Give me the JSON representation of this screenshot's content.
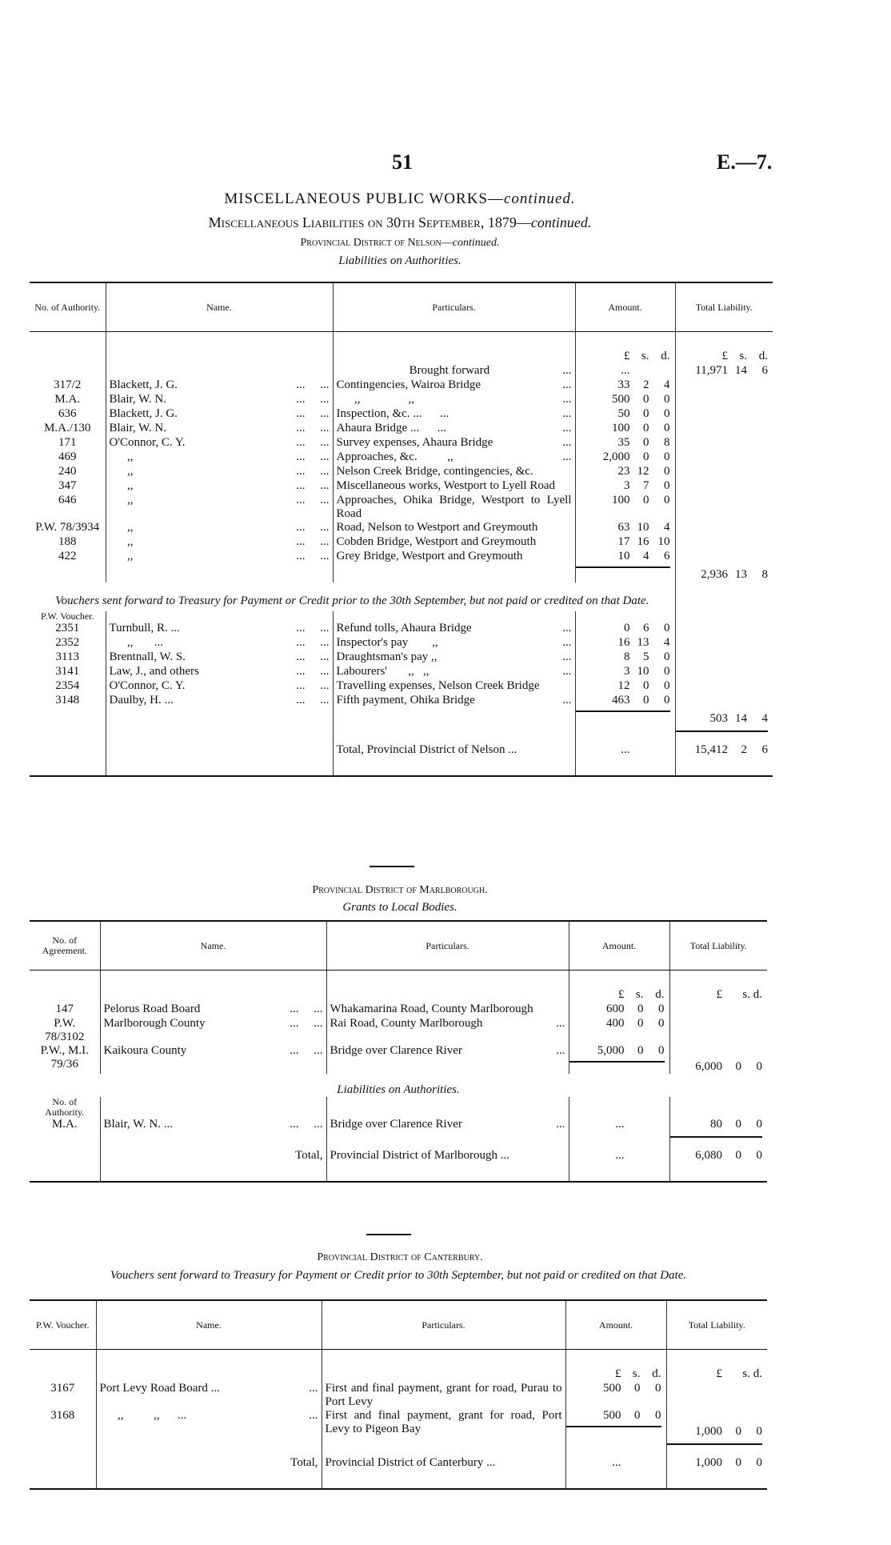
{
  "page_number": "51",
  "doc_ref": "E.—7.",
  "title": "MISCELLANEOUS PUBLIC WORKS—",
  "title_cont": "continued.",
  "subtitle": "Miscellaneous Liabilities on 30th September, 1879—",
  "subtitle_cont": "continued.",
  "nelson_heading": "Provincial District of Nelson—",
  "nelson_heading_cont": "continued.",
  "nelson_caption": "Liabilities on Authorities.",
  "nelson": {
    "headers": [
      "No. of Authority.",
      "Name.",
      "Particulars.",
      "Amount.",
      "Total Liability."
    ],
    "rows": [
      {
        "type": "row",
        "amt": [
          "£",
          "s.",
          "d."
        ],
        "tot": [
          "£",
          "s.",
          "d."
        ]
      },
      {
        "type": "row",
        "part": "Brought forward",
        "pdots": "...",
        "amt": [
          "...",
          "",
          ""
        ],
        "tot": [
          "11,971",
          "14",
          "6"
        ],
        "center": true
      },
      {
        "type": "row",
        "no": "317/2",
        "name": "Blackett, J. G.",
        "dots": "...     ...",
        "part": "Contingencies, Wairoa Bridge",
        "pdots": "...",
        "amt": [
          "33",
          "2",
          "4"
        ]
      },
      {
        "type": "row",
        "no": "M.A.",
        "name": "Blair, W. N.",
        "dots": "...     ...",
        "part": "      ,,                ,,",
        "pdots": "...",
        "amt": [
          "500",
          "0",
          "0"
        ]
      },
      {
        "type": "row",
        "no": "636",
        "name": "Blackett, J. G.",
        "dots": "...     ...",
        "part": "Inspection, &c. ...      ...",
        "pdots": "...",
        "amt": [
          "50",
          "0",
          "0"
        ]
      },
      {
        "type": "row",
        "no": "M.A./130",
        "name": "Blair, W. N.",
        "dots": "...     ...",
        "part": "Ahaura Bridge ...      ...",
        "pdots": "...",
        "amt": [
          "100",
          "0",
          "0"
        ]
      },
      {
        "type": "row",
        "no": "171",
        "name": "O'Connor, C. Y.",
        "dots": "...     ...",
        "part": "Survey expenses, Ahaura Bridge",
        "pdots": "...",
        "amt": [
          "35",
          "0",
          "8"
        ]
      },
      {
        "type": "row",
        "no": "469",
        "name": "      ,,",
        "dots": "...     ...",
        "part": "Approaches, &c.          ,,",
        "pdots": "...",
        "amt": [
          "2,000",
          "0",
          "0"
        ]
      },
      {
        "type": "row",
        "no": "240",
        "name": "      ,,",
        "dots": "...     ...",
        "part": "Nelson Creek Bridge, contingencies, &c.",
        "amt": [
          "23",
          "12",
          "0"
        ]
      },
      {
        "type": "row",
        "no": "347",
        "name": "      ,,",
        "dots": "...     ...",
        "part": "Miscellaneous works, Westport to Lyell Road",
        "amt": [
          "3",
          "7",
          "0"
        ]
      },
      {
        "type": "row",
        "no": "646",
        "name": "      ,,",
        "dots": "...     ...",
        "part": "Approaches, Ohika Bridge, Westport to Lyell Road",
        "amt": [
          "100",
          "0",
          "0"
        ]
      },
      {
        "type": "row",
        "no": "P.W. 78/3934",
        "name": "      ,,",
        "dots": "...     ...",
        "part": "Road, Nelson to Westport and Greymouth",
        "amt": [
          "63",
          "10",
          "4"
        ]
      },
      {
        "type": "row",
        "no": "188",
        "name": "      ,,",
        "dots": "...     ...",
        "part": "Cobden Bridge, Westport and Greymouth",
        "amt": [
          "17",
          "16",
          "10"
        ]
      },
      {
        "type": "row",
        "no": "422",
        "name": "      ,,",
        "dots": "...     ...",
        "part": "Grey Bridge, Westport and Greymouth",
        "amt": [
          "10",
          "4",
          "6"
        ],
        "rule": true
      },
      {
        "type": "row",
        "tot": [
          "2,936",
          "13",
          "8"
        ]
      },
      {
        "type": "note",
        "text": "Vouchers sent forward to Treasury for Payment or Credit prior to the 30th September, but not paid or credited on that Date."
      },
      {
        "type": "sub",
        "text": "P.W. Voucher."
      },
      {
        "type": "row",
        "no": "2351",
        "name": "Turnbull, R. ...",
        "dots": "...     ...",
        "part": "Refund tolls, Ahaura Bridge",
        "pdots": "...",
        "amt": [
          "0",
          "6",
          "0"
        ]
      },
      {
        "type": "row",
        "no": "2352",
        "name": "      ,,       ...",
        "dots": "...     ...",
        "part": "Inspector's pay        ,,",
        "pdots": "...",
        "amt": [
          "16",
          "13",
          "4"
        ]
      },
      {
        "type": "row",
        "no": "3113",
        "name": "Brentnall, W. S.",
        "dots": "...     ...",
        "part": "Draughtsman's pay ,,",
        "pdots": "...",
        "amt": [
          "8",
          "5",
          "0"
        ]
      },
      {
        "type": "row",
        "no": "3141",
        "name": "Law, J., and others",
        "dots": "...     ...",
        "part": "Labourers'       ,,   ,,",
        "pdots": "...",
        "amt": [
          "3",
          "10",
          "0"
        ]
      },
      {
        "type": "row",
        "no": "2354",
        "name": "O'Connor, C. Y.",
        "dots": "...     ...",
        "part": "Travelling expenses, Nelson Creek Bridge",
        "amt": [
          "12",
          "0",
          "0"
        ]
      },
      {
        "type": "row",
        "no": "3148",
        "name": "Daulby, H. ...",
        "dots": "...     ...",
        "part": "Fifth payment, Ohika Bridge",
        "pdots": "...",
        "amt": [
          "463",
          "0",
          "0"
        ],
        "rule": true
      },
      {
        "type": "row",
        "tot": [
          "503",
          "14",
          "4"
        ],
        "totrule": true
      },
      {
        "type": "row",
        "part": "Total, Provincial District of Nelson ...",
        "amt": [
          "...",
          "",
          ""
        ],
        "tot": [
          "15,412",
          "2",
          "6"
        ],
        "pad": true
      }
    ]
  },
  "marlborough_heading": "Provincial District of Marlborough.",
  "marlborough_caption": "Grants to Local Bodies.",
  "marlborough": {
    "headers": [
      "No. of Agreement.",
      "Name.",
      "Particulars.",
      "Amount.",
      "Total Liability."
    ],
    "rows": [
      {
        "type": "row",
        "amt": [
          "£",
          "s.",
          "d."
        ],
        "tot": [
          "£",
          "",
          "s.   d."
        ]
      },
      {
        "type": "row",
        "no": "147",
        "name": "Pelorus Road Board",
        "dots": "...     ...",
        "part": "Whakamarina Road, County Marlborough",
        "amt": [
          "600",
          "0",
          "0"
        ]
      },
      {
        "type": "row",
        "no": "P.W. 78/3102",
        "name": "Marlborough County",
        "dots": "...     ...",
        "part": "Rai Road, County Marlborough",
        "pdots": "...",
        "amt": [
          "400",
          "0",
          "0"
        ]
      },
      {
        "type": "row",
        "no": "P.W., M.I. 79/36",
        "name": "Kaikoura County",
        "dots": "...     ...",
        "part": "Bridge over Clarence River",
        "pdots": "...",
        "amt": [
          "5,000",
          "0",
          "0"
        ],
        "rule": true,
        "tot": [
          "6,000",
          "0",
          "0"
        ],
        "totlow": true
      },
      {
        "type": "cap",
        "text": "Liabilities on Authorities."
      },
      {
        "type": "sub",
        "text": "No. of Authority."
      },
      {
        "type": "row",
        "no": "M.A.",
        "name": "Blair, W. N. ...",
        "dots": "...     ...",
        "part": "Bridge over Clarence River",
        "pdots": "...",
        "amt": [
          "...",
          "",
          ""
        ],
        "tot": [
          "80",
          "0",
          "0"
        ],
        "totrule": true
      },
      {
        "type": "row",
        "name": "",
        "dots": "Total,",
        "part": "Provincial District of Marlborough ...",
        "amt": [
          "...",
          "",
          ""
        ],
        "tot": [
          "6,080",
          "0",
          "0"
        ],
        "pad": true
      }
    ]
  },
  "canterbury_heading": "Provincial District of Canterbury.",
  "canterbury_caption": "Vouchers sent forward to Treasury for Payment or Credit prior to 30th September, but not paid or credited on that Date.",
  "canterbury": {
    "headers": [
      "P.W. Voucher.",
      "Name.",
      "Particulars.",
      "Amount.",
      "Total Liability."
    ],
    "rows": [
      {
        "type": "row",
        "amt": [
          "£",
          "s.",
          "d."
        ],
        "tot": [
          "£",
          "",
          "s.   d."
        ]
      },
      {
        "type": "row",
        "no": "3167",
        "name": "Port Levy Road Board ...",
        "dots": "...",
        "part": "First and final payment, grant for road, Purau to Port Levy",
        "amt": [
          "500",
          "0",
          "0"
        ]
      },
      {
        "type": "row",
        "no": "3168",
        "name": "      ,,          ,,      ...",
        "dots": "...",
        "part": "First and final payment, grant for road, Port Levy to Pigeon Bay",
        "amt": [
          "500",
          "0",
          "0"
        ],
        "rule": true,
        "tot": [
          "1,000",
          "0",
          "0"
        ],
        "totlow": true,
        "totrule": true
      },
      {
        "type": "row",
        "name": "",
        "dots": "Total,",
        "part": "Provincial District of Canterbury ...",
        "amt": [
          "...",
          "",
          ""
        ],
        "tot": [
          "1,000",
          "0",
          "0"
        ],
        "pad": true
      }
    ]
  }
}
